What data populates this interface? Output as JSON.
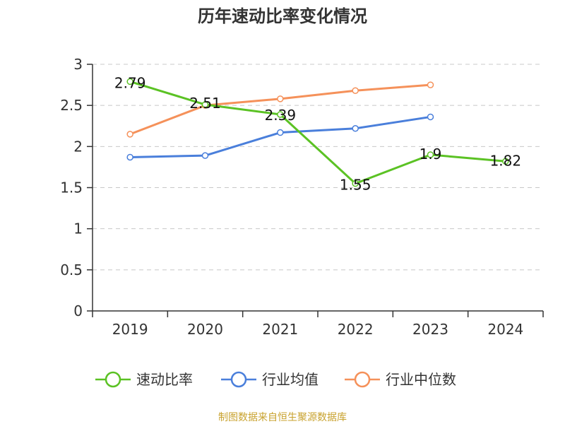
{
  "chart_data": {
    "type": "line",
    "title": "历年速动比率变化情况",
    "categories": [
      "2019",
      "2020",
      "2021",
      "2022",
      "2023",
      "2024"
    ],
    "ylim": [
      0,
      3
    ],
    "yticks": [
      "0",
      "0.5",
      "1",
      "1.5",
      "2",
      "2.5",
      "3"
    ],
    "grid": true,
    "legend_position": "bottom",
    "series": [
      {
        "name": "速动比率",
        "color": "#5bc224",
        "values": [
          2.79,
          2.51,
          2.39,
          1.55,
          1.9,
          1.82
        ],
        "labels": [
          "2.79",
          "2.51",
          "2.39",
          "1.55",
          "1.9",
          "1.82"
        ]
      },
      {
        "name": "行业均值",
        "color": "#4a7fdb",
        "values": [
          1.87,
          1.89,
          2.17,
          2.22,
          2.36,
          null
        ]
      },
      {
        "name": "行业中位数",
        "color": "#f5915a",
        "values": [
          2.15,
          2.5,
          2.58,
          2.68,
          2.75,
          null
        ]
      }
    ]
  },
  "source": "制图数据来自恒生聚源数据库"
}
